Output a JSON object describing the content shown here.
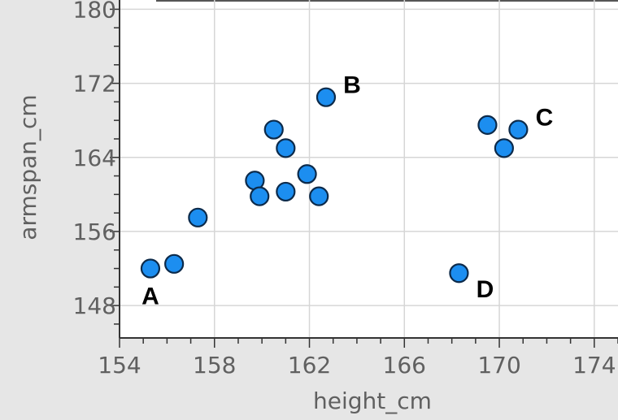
{
  "chart_data": {
    "type": "scatter",
    "xlabel": "height_cm",
    "ylabel": "armspan_cm",
    "xlim": [
      154,
      175
    ],
    "ylim": [
      144.5,
      181
    ],
    "x_ticks": [
      154,
      158,
      162,
      166,
      170,
      174
    ],
    "y_ticks": [
      148,
      156,
      164,
      172,
      180
    ],
    "x_tick_labels": [
      "154",
      "158",
      "162",
      "166",
      "170",
      "174"
    ],
    "y_tick_labels": [
      "148",
      "156",
      "164",
      "172",
      "180"
    ],
    "grid": true,
    "point_color": "#1c8ef0",
    "points": [
      {
        "x": 155.3,
        "y": 152.0
      },
      {
        "x": 156.3,
        "y": 152.5
      },
      {
        "x": 157.3,
        "y": 157.5
      },
      {
        "x": 159.7,
        "y": 161.5
      },
      {
        "x": 159.9,
        "y": 159.8
      },
      {
        "x": 160.5,
        "y": 167.0
      },
      {
        "x": 161.0,
        "y": 165.0
      },
      {
        "x": 161.0,
        "y": 160.3
      },
      {
        "x": 161.9,
        "y": 162.2
      },
      {
        "x": 162.4,
        "y": 159.8
      },
      {
        "x": 162.7,
        "y": 170.5
      },
      {
        "x": 168.3,
        "y": 151.5
      },
      {
        "x": 169.5,
        "y": 167.5
      },
      {
        "x": 170.2,
        "y": 165.0
      },
      {
        "x": 170.8,
        "y": 167.0
      }
    ],
    "annotations": [
      {
        "text": "A",
        "x": 155.3,
        "y": 152.0,
        "pos": "below"
      },
      {
        "text": "B",
        "x": 162.7,
        "y": 170.5,
        "pos": "upper-right"
      },
      {
        "text": "C",
        "x": 170.8,
        "y": 167.0,
        "pos": "upper-right"
      },
      {
        "text": "D",
        "x": 168.3,
        "y": 151.5,
        "pos": "lower-right"
      }
    ]
  }
}
